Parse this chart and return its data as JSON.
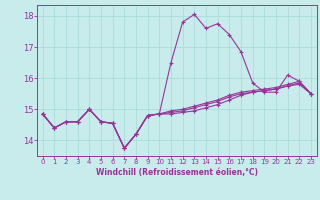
{
  "title": "",
  "xlabel": "Windchill (Refroidissement éolien,°C)",
  "ylabel": "",
  "bg_color": "#c8ecec",
  "line_color": "#993399",
  "grid_color": "#aadddd",
  "axis_color": "#993399",
  "text_color": "#993399",
  "xlim": [
    -0.5,
    23.5
  ],
  "ylim": [
    13.5,
    18.35
  ],
  "yticks": [
    14,
    15,
    16,
    17,
    18
  ],
  "xticks": [
    0,
    1,
    2,
    3,
    4,
    5,
    6,
    7,
    8,
    9,
    10,
    11,
    12,
    13,
    14,
    15,
    16,
    17,
    18,
    19,
    20,
    21,
    22,
    23
  ],
  "series": [
    [
      14.85,
      14.4,
      14.6,
      14.6,
      15.0,
      14.6,
      14.55,
      13.75,
      14.2,
      14.8,
      14.85,
      16.5,
      17.8,
      18.05,
      17.6,
      17.75,
      17.4,
      16.85,
      15.85,
      15.55,
      15.55,
      16.1,
      15.9,
      15.5
    ],
    [
      14.85,
      14.4,
      14.6,
      14.6,
      15.0,
      14.6,
      14.55,
      13.75,
      14.2,
      14.8,
      14.85,
      14.85,
      14.9,
      14.95,
      15.05,
      15.15,
      15.3,
      15.45,
      15.55,
      15.6,
      15.65,
      15.75,
      15.8,
      15.5
    ],
    [
      14.85,
      14.4,
      14.6,
      14.6,
      15.0,
      14.6,
      14.55,
      13.75,
      14.2,
      14.8,
      14.85,
      14.9,
      14.95,
      15.05,
      15.15,
      15.25,
      15.4,
      15.5,
      15.55,
      15.6,
      15.65,
      15.75,
      15.85,
      15.5
    ],
    [
      14.85,
      14.4,
      14.6,
      14.6,
      15.0,
      14.6,
      14.55,
      13.75,
      14.2,
      14.8,
      14.85,
      14.95,
      15.0,
      15.1,
      15.2,
      15.3,
      15.45,
      15.55,
      15.6,
      15.65,
      15.7,
      15.8,
      15.9,
      15.5
    ]
  ]
}
